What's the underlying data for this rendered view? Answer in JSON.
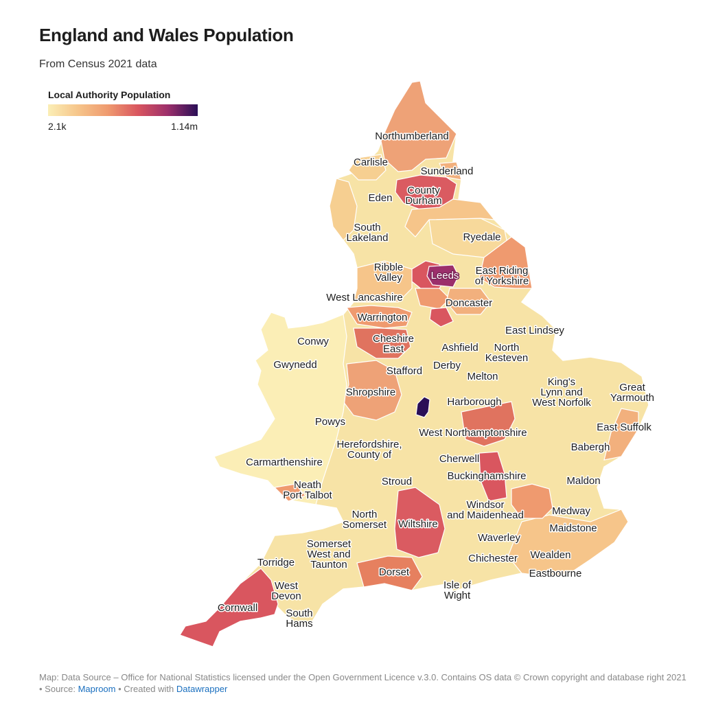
{
  "title": "England and Wales Population",
  "subtitle": "From Census 2021 data",
  "legend": {
    "title": "Local Authority Population",
    "min_label": "2.1k",
    "max_label": "1.14m",
    "colors": [
      "#fbeeb6",
      "#f6c58a",
      "#ef9a6f",
      "#d9565f",
      "#9c2f6b",
      "#2a0f57"
    ]
  },
  "map": {
    "labels": [
      {
        "id": "northumberland",
        "lines": [
          "Northumberland"
        ]
      },
      {
        "id": "carlisle",
        "lines": [
          "Carlisle"
        ]
      },
      {
        "id": "sunderland",
        "lines": [
          "Sunderland"
        ]
      },
      {
        "id": "county-durham",
        "lines": [
          "County",
          "Durham"
        ]
      },
      {
        "id": "eden",
        "lines": [
          "Eden"
        ]
      },
      {
        "id": "south-lakeland",
        "lines": [
          "South",
          "Lakeland"
        ]
      },
      {
        "id": "ryedale",
        "lines": [
          "Ryedale"
        ]
      },
      {
        "id": "ribble-valley",
        "lines": [
          "Ribble",
          "Valley"
        ]
      },
      {
        "id": "leeds",
        "lines": [
          "Leeds"
        ]
      },
      {
        "id": "east-riding",
        "lines": [
          "East Riding",
          "of Yorkshire"
        ]
      },
      {
        "id": "west-lancashire",
        "lines": [
          "West Lancashire"
        ]
      },
      {
        "id": "doncaster",
        "lines": [
          "Doncaster"
        ]
      },
      {
        "id": "warrington",
        "lines": [
          "Warrington"
        ]
      },
      {
        "id": "east-lindsey",
        "lines": [
          "East Lindsey"
        ]
      },
      {
        "id": "conwy",
        "lines": [
          "Conwy"
        ]
      },
      {
        "id": "cheshire-east",
        "lines": [
          "Cheshire",
          "East"
        ]
      },
      {
        "id": "ashfield",
        "lines": [
          "Ashfield"
        ]
      },
      {
        "id": "north-kesteven",
        "lines": [
          "North",
          "Kesteven"
        ]
      },
      {
        "id": "gwynedd",
        "lines": [
          "Gwynedd"
        ]
      },
      {
        "id": "derby",
        "lines": [
          "Derby"
        ]
      },
      {
        "id": "stafford",
        "lines": [
          "Stafford"
        ]
      },
      {
        "id": "melton",
        "lines": [
          "Melton"
        ]
      },
      {
        "id": "kings-lynn",
        "lines": [
          "King's",
          "Lynn and",
          "West Norfolk"
        ]
      },
      {
        "id": "great-yarmouth",
        "lines": [
          "Great",
          "Yarmouth"
        ]
      },
      {
        "id": "shropshire",
        "lines": [
          "Shropshire"
        ]
      },
      {
        "id": "harborough",
        "lines": [
          "Harborough"
        ]
      },
      {
        "id": "powys",
        "lines": [
          "Powys"
        ]
      },
      {
        "id": "east-suffolk",
        "lines": [
          "East Suffolk"
        ]
      },
      {
        "id": "west-northamptonshire",
        "lines": [
          "West Northamptonshire"
        ]
      },
      {
        "id": "herefordshire",
        "lines": [
          "Herefordshire,",
          "County of"
        ]
      },
      {
        "id": "babergh",
        "lines": [
          "Babergh"
        ]
      },
      {
        "id": "carmarthenshire",
        "lines": [
          "Carmarthenshire"
        ]
      },
      {
        "id": "cherwell",
        "lines": [
          "Cherwell"
        ]
      },
      {
        "id": "buckinghamshire",
        "lines": [
          "Buckinghamshire"
        ]
      },
      {
        "id": "stroud",
        "lines": [
          "Stroud"
        ]
      },
      {
        "id": "maldon",
        "lines": [
          "Maldon"
        ]
      },
      {
        "id": "neath-port-talbot",
        "lines": [
          "Neath",
          "Port Talbot"
        ]
      },
      {
        "id": "windsor",
        "lines": [
          "Windsor",
          "and Maidenhead"
        ]
      },
      {
        "id": "medway",
        "lines": [
          "Medway"
        ]
      },
      {
        "id": "north-somerset",
        "lines": [
          "North",
          "Somerset"
        ]
      },
      {
        "id": "wiltshire",
        "lines": [
          "Wiltshire"
        ]
      },
      {
        "id": "maidstone",
        "lines": [
          "Maidstone"
        ]
      },
      {
        "id": "waverley",
        "lines": [
          "Waverley"
        ]
      },
      {
        "id": "somerset-west",
        "lines": [
          "Somerset",
          "West and",
          "Taunton"
        ]
      },
      {
        "id": "wealden",
        "lines": [
          "Wealden"
        ]
      },
      {
        "id": "chichester",
        "lines": [
          "Chichester"
        ]
      },
      {
        "id": "torridge",
        "lines": [
          "Torridge"
        ]
      },
      {
        "id": "eastbourne",
        "lines": [
          "Eastbourne"
        ]
      },
      {
        "id": "dorset",
        "lines": [
          "Dorset"
        ]
      },
      {
        "id": "isle-of-wight",
        "lines": [
          "Isle of",
          "Wight"
        ]
      },
      {
        "id": "west-devon",
        "lines": [
          "West",
          "Devon"
        ]
      },
      {
        "id": "cornwall",
        "lines": [
          "Cornwall"
        ]
      },
      {
        "id": "south-hams",
        "lines": [
          "South",
          "Hams"
        ]
      }
    ]
  },
  "footer": {
    "line1": "Map: Data Source – Office for National Statistics licensed under the Open Government Licence v.3.0. Contains OS data © Crown copyright and database right 2021",
    "bullet1": "• Source: ",
    "source_link": "Maproom",
    "bullet2": " • Created with ",
    "created_link": "Datawrapper"
  }
}
